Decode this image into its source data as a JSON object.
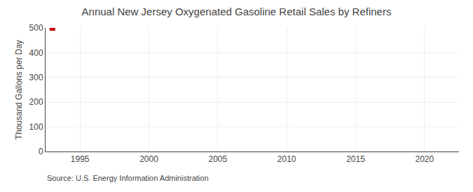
{
  "chart_data": {
    "type": "scatter",
    "title": "Annual New Jersey Oxygenated Gasoline Retail Sales by Refiners",
    "ylabel": "Thousand Gallons per Day",
    "annotations": [
      "Source: U.S. Energy Information Administration"
    ],
    "x": [
      1993
    ],
    "values": [
      500
    ],
    "color": "#cc0000",
    "marker": "square",
    "xlim": [
      1992.5,
      2022.5
    ],
    "xticks": [
      1995,
      2000,
      2005,
      2010,
      2015,
      2020
    ],
    "ylim": [
      0,
      500
    ],
    "yticks": [
      0,
      100,
      200,
      300,
      400,
      500
    ],
    "grid": true
  }
}
